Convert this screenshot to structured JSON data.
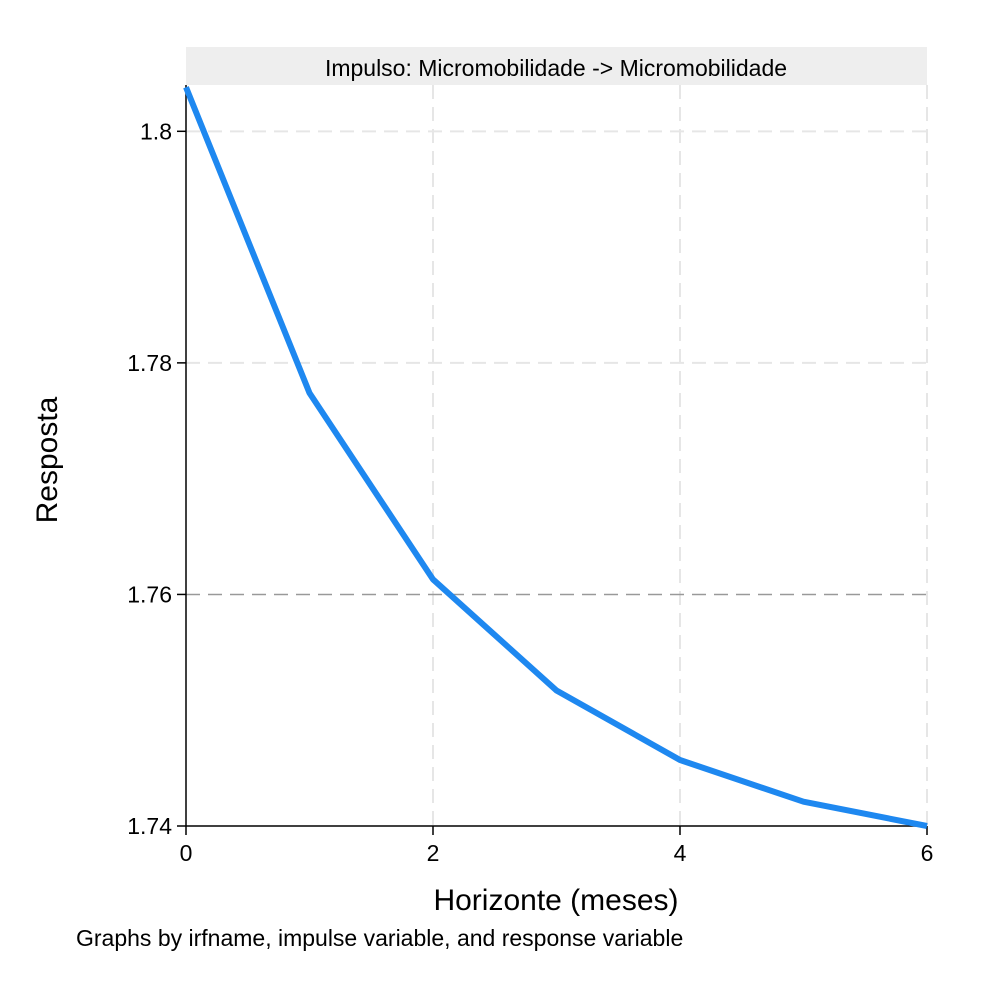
{
  "chart_data": {
    "type": "line",
    "panel_title": "Impulso: Micromobilidade -> Micromobilidade",
    "xlabel": "Horizonte (meses)",
    "ylabel": "Resposta",
    "note": "Graphs by irfname, impulse variable, and response variable",
    "xlim": [
      0,
      6
    ],
    "ylim": [
      1.74,
      1.804
    ],
    "x_ticks": [
      0,
      2,
      4,
      6
    ],
    "y_ticks": [
      1.74,
      1.76,
      1.78,
      1.8
    ],
    "y_tick_labels": [
      "1.74",
      "1.76",
      "1.78",
      "1.8"
    ],
    "grid": true,
    "series": [
      {
        "color": "#1e88f0",
        "x": [
          0,
          1,
          2,
          3,
          4,
          5,
          6
        ],
        "y": [
          1.8038,
          1.7774,
          1.7613,
          1.7517,
          1.7457,
          1.7421,
          1.74
        ]
      }
    ]
  }
}
